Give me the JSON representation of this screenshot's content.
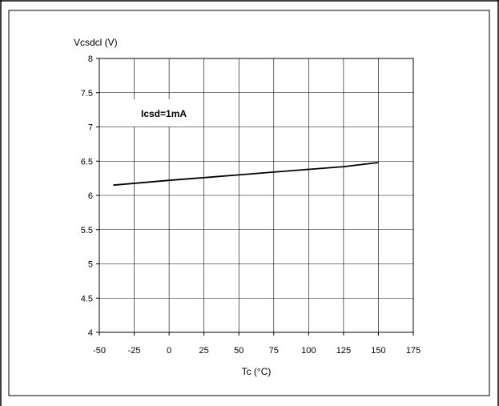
{
  "chart_data": {
    "type": "line",
    "title": "",
    "xlabel": "Tc (°C)",
    "ylabel": "Vcsdcl (V)",
    "xlim": [
      -50,
      175
    ],
    "ylim": [
      4,
      8
    ],
    "xticks": [
      "-50",
      "-25",
      "0",
      "25",
      "50",
      "75",
      "100",
      "125",
      "150",
      "175"
    ],
    "yticks": [
      "4",
      "4.5",
      "5",
      "5.5",
      "6",
      "6.5",
      "7",
      "7.5",
      "8"
    ],
    "grid": true,
    "annotation": "Icsd=1mA",
    "series": [
      {
        "x": [
          -40,
          0,
          25,
          50,
          75,
          100,
          125,
          150
        ],
        "y": [
          6.15,
          6.22,
          6.26,
          6.3,
          6.34,
          6.38,
          6.42,
          6.48
        ]
      }
    ]
  }
}
